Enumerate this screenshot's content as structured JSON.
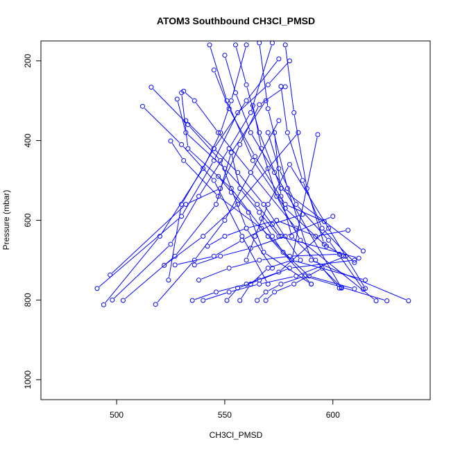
{
  "chart_data": {
    "type": "line",
    "title": "ATOM3 Southbound CH3Cl_PMSD",
    "xlabel": "CH3Cl_PMSD",
    "ylabel": "Pressure (mbar)",
    "xlim": [
      465,
      645
    ],
    "ylim": [
      1050,
      150
    ],
    "y_reversed": true,
    "xticks": [
      500,
      550,
      600
    ],
    "yticks": [
      200,
      400,
      600,
      800,
      1000
    ],
    "grid": false,
    "series_color": "#0000ff",
    "marker": "open-circle",
    "profiles": [
      {
        "x": [
          491,
          530,
          545,
          556,
          570,
          580
        ],
        "y": [
          771,
          590,
          450,
          330,
          260,
          200
        ]
      },
      {
        "x": [
          494,
          520,
          540,
          548,
          553,
          560
        ],
        "y": [
          812,
          640,
          470,
          380,
          300,
          160
        ]
      },
      {
        "x": [
          497,
          532,
          548,
          557,
          566,
          578
        ],
        "y": [
          737,
          560,
          520,
          410,
          310,
          265
        ]
      },
      {
        "x": [
          498,
          525,
          538,
          552,
          562,
          572
        ],
        "y": [
          800,
          660,
          540,
          420,
          330,
          155
        ]
      },
      {
        "x": [
          503,
          527,
          546,
          553,
          569
        ],
        "y": [
          801,
          690,
          560,
          430,
          300
        ]
      },
      {
        "x": [
          512,
          530,
          545,
          558,
          570
        ],
        "y": [
          314,
          410,
          500,
          640,
          760
        ]
      },
      {
        "x": [
          516,
          533,
          548,
          560,
          572
        ],
        "y": [
          266,
          360,
          450,
          620,
          720
        ]
      },
      {
        "x": [
          518,
          536,
          550,
          562,
          575
        ],
        "y": [
          811,
          700,
          600,
          480,
          350
        ]
      },
      {
        "x": [
          522,
          540,
          556,
          570,
          584
        ],
        "y": [
          713,
          640,
          560,
          470,
          380
        ]
      },
      {
        "x": [
          524,
          530,
          545,
          560,
          575
        ],
        "y": [
          750,
          560,
          420,
          300,
          195
        ]
      },
      {
        "x": [
          525,
          531,
          547,
          567,
          581,
          593
        ],
        "y": [
          401,
          450,
          540,
          620,
          700,
          385
        ]
      },
      {
        "x": [
          527,
          545,
          558,
          572,
          586
        ],
        "y": [
          712,
          690,
          650,
          610,
          585
        ]
      },
      {
        "x": [
          528,
          532,
          550,
          565,
          576
        ],
        "y": [
          296,
          380,
          470,
          560,
          640
        ]
      },
      {
        "x": [
          530,
          533,
          553,
          570,
          590
        ],
        "y": [
          280,
          420,
          520,
          640,
          760
        ]
      },
      {
        "x": [
          531,
          536,
          547,
          562,
          583
        ],
        "y": [
          276,
          300,
          380,
          480,
          620
        ]
      },
      {
        "x": [
          532,
          545,
          556,
          568,
          585
        ],
        "y": [
          350,
          420,
          480,
          560,
          700
        ]
      },
      {
        "x": [
          535,
          546,
          560,
          575,
          598
        ],
        "y": [
          801,
          780,
          760,
          730,
          620
        ]
      },
      {
        "x": [
          536,
          548,
          562,
          578,
          600
        ],
        "y": [
          712,
          690,
          670,
          640,
          590
        ]
      },
      {
        "x": [
          538,
          552,
          566,
          580,
          603
        ],
        "y": [
          750,
          720,
          700,
          690,
          685
        ]
      },
      {
        "x": [
          540,
          552,
          566,
          583,
          606
        ],
        "y": [
          801,
          780,
          760,
          740,
          690
        ]
      },
      {
        "x": [
          542,
          550,
          560,
          574,
          592,
          607
        ],
        "y": [
          665,
          640,
          620,
          600,
          640,
          625
        ]
      },
      {
        "x": [
          543,
          551,
          563,
          578,
          597
        ],
        "y": [
          160,
          300,
          450,
          570,
          665
        ]
      },
      {
        "x": [
          545,
          552,
          564,
          578,
          596
        ],
        "y": [
          223,
          320,
          440,
          560,
          603
        ]
      },
      {
        "x": [
          547,
          553,
          561,
          568,
          590
        ],
        "y": [
          490,
          530,
          580,
          680,
          760
        ]
      },
      {
        "x": [
          550,
          555,
          562,
          573,
          604
        ],
        "y": [
          186,
          280,
          380,
          480,
          770
        ]
      },
      {
        "x": [
          551,
          556,
          566,
          580,
          610
        ],
        "y": [
          801,
          770,
          750,
          720,
          700
        ]
      },
      {
        "x": [
          553,
          557,
          566,
          575,
          612
        ],
        "y": [
          430,
          520,
          580,
          640,
          695
        ]
      },
      {
        "x": [
          555,
          560,
          566,
          576,
          614
        ],
        "y": [
          160,
          260,
          380,
          520,
          677
        ]
      },
      {
        "x": [
          557,
          562,
          570,
          581,
          615
        ],
        "y": [
          801,
          760,
          720,
          700,
          750
        ]
      },
      {
        "x": [
          560,
          564,
          570,
          580,
          615
        ],
        "y": [
          700,
          640,
          560,
          460,
          771
        ]
      },
      {
        "x": [
          563,
          567,
          574,
          585,
          620
        ],
        "y": [
          312,
          420,
          540,
          650,
          802
        ]
      },
      {
        "x": [
          565,
          569,
          576,
          587,
          625
        ],
        "y": [
          801,
          780,
          760,
          740,
          802
        ]
      },
      {
        "x": [
          566,
          570,
          579,
          590,
          635
        ],
        "y": [
          155,
          320,
          520,
          700,
          802
        ]
      },
      {
        "x": [
          567,
          572,
          577,
          589,
          610
        ],
        "y": [
          596,
          640,
          680,
          740,
          772
        ]
      },
      {
        "x": [
          569,
          573,
          582,
          595,
          604
        ],
        "y": [
          801,
          780,
          760,
          720,
          768
        ]
      },
      {
        "x": [
          570,
          575,
          583,
          598,
          614
        ],
        "y": [
          380,
          470,
          560,
          650,
          773
        ]
      },
      {
        "x": [
          573,
          576,
          581,
          592,
          603
        ],
        "y": [
          380,
          540,
          640,
          700,
          770
        ]
      },
      {
        "x": [
          576,
          579,
          586,
          595,
          610
        ],
        "y": [
          264,
          380,
          500,
          620,
          706
        ]
      },
      {
        "x": [
          578,
          582,
          588,
          596,
          605
        ],
        "y": [
          160,
          330,
          520,
          660,
          690
        ]
      }
    ]
  }
}
